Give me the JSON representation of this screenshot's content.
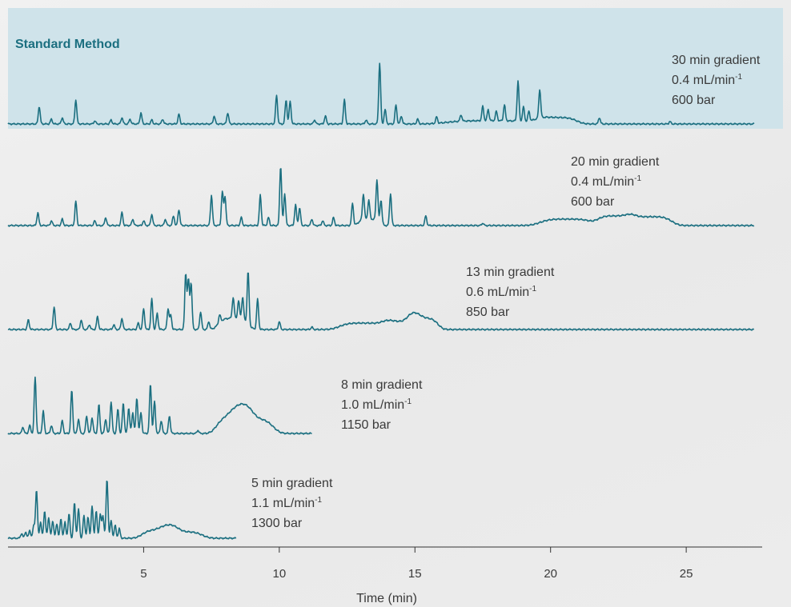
{
  "colors": {
    "trace": "#1b6f80",
    "highlight": "#cfe3ea",
    "axis": "#333333",
    "text": "#3a3a3a"
  },
  "chart_data": {
    "type": "line",
    "highlight_label": "Standard Method",
    "xlabel": "Time (min)",
    "xlim": [
      0,
      27.8
    ],
    "xticks": [
      5,
      10,
      15,
      20,
      25
    ],
    "series": [
      {
        "gradient": "30 min gradient",
        "flow_value": "0.4",
        "flow_unit": "mL/min",
        "flow_exp": "-1",
        "pressure": "600 bar",
        "end": 27.5,
        "amp": 1,
        "highlighted": true,
        "peaks": [
          [
            1.15,
            22
          ],
          [
            1.6,
            6
          ],
          [
            2.0,
            8
          ],
          [
            2.5,
            30
          ],
          [
            3.2,
            4
          ],
          [
            3.8,
            5
          ],
          [
            4.2,
            8
          ],
          [
            4.5,
            6
          ],
          [
            4.9,
            14
          ],
          [
            5.3,
            5
          ],
          [
            5.7,
            6
          ],
          [
            6.3,
            12
          ],
          [
            7.6,
            10
          ],
          [
            8.1,
            14
          ],
          [
            9.9,
            36
          ],
          [
            10.25,
            30
          ],
          [
            10.4,
            28
          ],
          [
            11.3,
            5
          ],
          [
            11.7,
            10
          ],
          [
            12.4,
            30
          ],
          [
            13.2,
            5
          ],
          [
            13.7,
            76
          ],
          [
            13.9,
            18
          ],
          [
            14.3,
            24
          ],
          [
            14.5,
            10
          ],
          [
            15.1,
            6
          ],
          [
            15.8,
            8
          ],
          [
            16.7,
            8
          ],
          [
            17.5,
            18
          ],
          [
            17.7,
            14
          ],
          [
            18.0,
            12
          ],
          [
            18.3,
            20
          ],
          [
            18.8,
            50
          ],
          [
            19.0,
            18
          ],
          [
            19.2,
            12
          ],
          [
            19.6,
            36
          ],
          [
            21.8,
            8
          ],
          [
            24.4,
            3
          ]
        ],
        "humps": [
          [
            20.2,
            0.7,
            8
          ],
          [
            17.8,
            1.5,
            4
          ]
        ]
      },
      {
        "gradient": "20 min gradient",
        "flow_value": "0.4",
        "flow_unit": "mL/min",
        "flow_exp": "-1",
        "pressure": "600 bar",
        "end": 27.5,
        "amp": 1,
        "peaks": [
          [
            1.1,
            16
          ],
          [
            1.6,
            6
          ],
          [
            2.0,
            8
          ],
          [
            2.5,
            30
          ],
          [
            3.2,
            6
          ],
          [
            3.6,
            10
          ],
          [
            4.2,
            16
          ],
          [
            4.6,
            8
          ],
          [
            5.0,
            6
          ],
          [
            5.3,
            14
          ],
          [
            5.8,
            8
          ],
          [
            6.1,
            12
          ],
          [
            6.3,
            20
          ],
          [
            7.5,
            38
          ],
          [
            7.9,
            42
          ],
          [
            8.0,
            36
          ],
          [
            8.6,
            10
          ],
          [
            9.3,
            38
          ],
          [
            9.6,
            10
          ],
          [
            10.05,
            74
          ],
          [
            10.2,
            40
          ],
          [
            10.6,
            26
          ],
          [
            10.75,
            22
          ],
          [
            11.2,
            8
          ],
          [
            11.6,
            6
          ],
          [
            12.0,
            10
          ],
          [
            12.7,
            28
          ],
          [
            13.1,
            32
          ],
          [
            13.3,
            24
          ],
          [
            13.6,
            52
          ],
          [
            13.75,
            30
          ],
          [
            14.1,
            40
          ],
          [
            15.4,
            12
          ],
          [
            17.5,
            3
          ]
        ],
        "humps": [
          [
            20.6,
            0.9,
            8
          ],
          [
            22.4,
            0.6,
            12
          ],
          [
            23.7,
            0.7,
            11
          ],
          [
            13.3,
            0.35,
            8
          ]
        ]
      },
      {
        "gradient": "13 min gradient",
        "flow_value": "0.6",
        "flow_unit": "mL/min",
        "flow_exp": "-1",
        "pressure": "850 bar",
        "end": 27.5,
        "amp": 1,
        "peaks": [
          [
            0.75,
            12
          ],
          [
            1.7,
            28
          ],
          [
            2.3,
            8
          ],
          [
            2.7,
            12
          ],
          [
            3.0,
            6
          ],
          [
            3.3,
            16
          ],
          [
            3.9,
            6
          ],
          [
            4.2,
            14
          ],
          [
            4.8,
            8
          ],
          [
            5.0,
            26
          ],
          [
            5.3,
            38
          ],
          [
            5.5,
            20
          ],
          [
            5.9,
            26
          ],
          [
            6.0,
            18
          ],
          [
            6.55,
            70
          ],
          [
            6.65,
            62
          ],
          [
            6.75,
            58
          ],
          [
            7.1,
            22
          ],
          [
            7.4,
            10
          ],
          [
            7.8,
            10
          ],
          [
            8.3,
            26
          ],
          [
            8.5,
            22
          ],
          [
            8.65,
            28
          ],
          [
            8.85,
            66
          ],
          [
            9.2,
            38
          ],
          [
            10.0,
            10
          ],
          [
            11.2,
            3
          ]
        ],
        "humps": [
          [
            13.1,
            0.8,
            8
          ],
          [
            14.5,
            0.6,
            10
          ],
          [
            15.3,
            0.5,
            14
          ],
          [
            8.3,
            0.5,
            14
          ]
        ]
      },
      {
        "gradient": "8 min gradient",
        "flow_value": "1.0",
        "flow_unit": "mL/min",
        "flow_exp": "-1",
        "pressure": "1150 bar",
        "end": 11.2,
        "amp": 1,
        "peaks": [
          [
            0.55,
            8
          ],
          [
            0.8,
            10
          ],
          [
            1.0,
            70
          ],
          [
            1.3,
            28
          ],
          [
            1.6,
            10
          ],
          [
            2.0,
            16
          ],
          [
            2.35,
            54
          ],
          [
            2.6,
            18
          ],
          [
            2.9,
            22
          ],
          [
            3.1,
            20
          ],
          [
            3.35,
            36
          ],
          [
            3.6,
            18
          ],
          [
            3.8,
            40
          ],
          [
            4.05,
            30
          ],
          [
            4.25,
            38
          ],
          [
            4.45,
            32
          ],
          [
            4.6,
            26
          ],
          [
            4.75,
            44
          ],
          [
            4.9,
            26
          ],
          [
            5.25,
            62
          ],
          [
            5.4,
            40
          ],
          [
            5.65,
            16
          ],
          [
            5.95,
            22
          ],
          [
            7.0,
            4
          ]
        ],
        "humps": [
          [
            8.35,
            0.6,
            20
          ],
          [
            9.0,
            0.7,
            18
          ]
        ]
      },
      {
        "gradient": "5 min gradient",
        "flow_value": "1.1",
        "flow_unit": "mL/min",
        "flow_exp": "-1",
        "pressure": "1300 bar",
        "end": 8.4,
        "amp": 1,
        "peaks": [
          [
            0.5,
            6
          ],
          [
            0.65,
            8
          ],
          [
            0.8,
            10
          ],
          [
            0.95,
            16
          ],
          [
            1.05,
            60
          ],
          [
            1.2,
            20
          ],
          [
            1.35,
            34
          ],
          [
            1.5,
            26
          ],
          [
            1.65,
            22
          ],
          [
            1.8,
            18
          ],
          [
            1.95,
            24
          ],
          [
            2.1,
            20
          ],
          [
            2.25,
            30
          ],
          [
            2.45,
            44
          ],
          [
            2.6,
            36
          ],
          [
            2.8,
            28
          ],
          [
            2.95,
            26
          ],
          [
            3.1,
            40
          ],
          [
            3.25,
            34
          ],
          [
            3.4,
            30
          ],
          [
            3.5,
            28
          ],
          [
            3.65,
            74
          ],
          [
            3.8,
            22
          ],
          [
            3.95,
            16
          ],
          [
            4.1,
            12
          ]
        ],
        "humps": [
          [
            5.6,
            0.6,
            10
          ],
          [
            6.4,
            0.7,
            8
          ]
        ]
      }
    ]
  }
}
